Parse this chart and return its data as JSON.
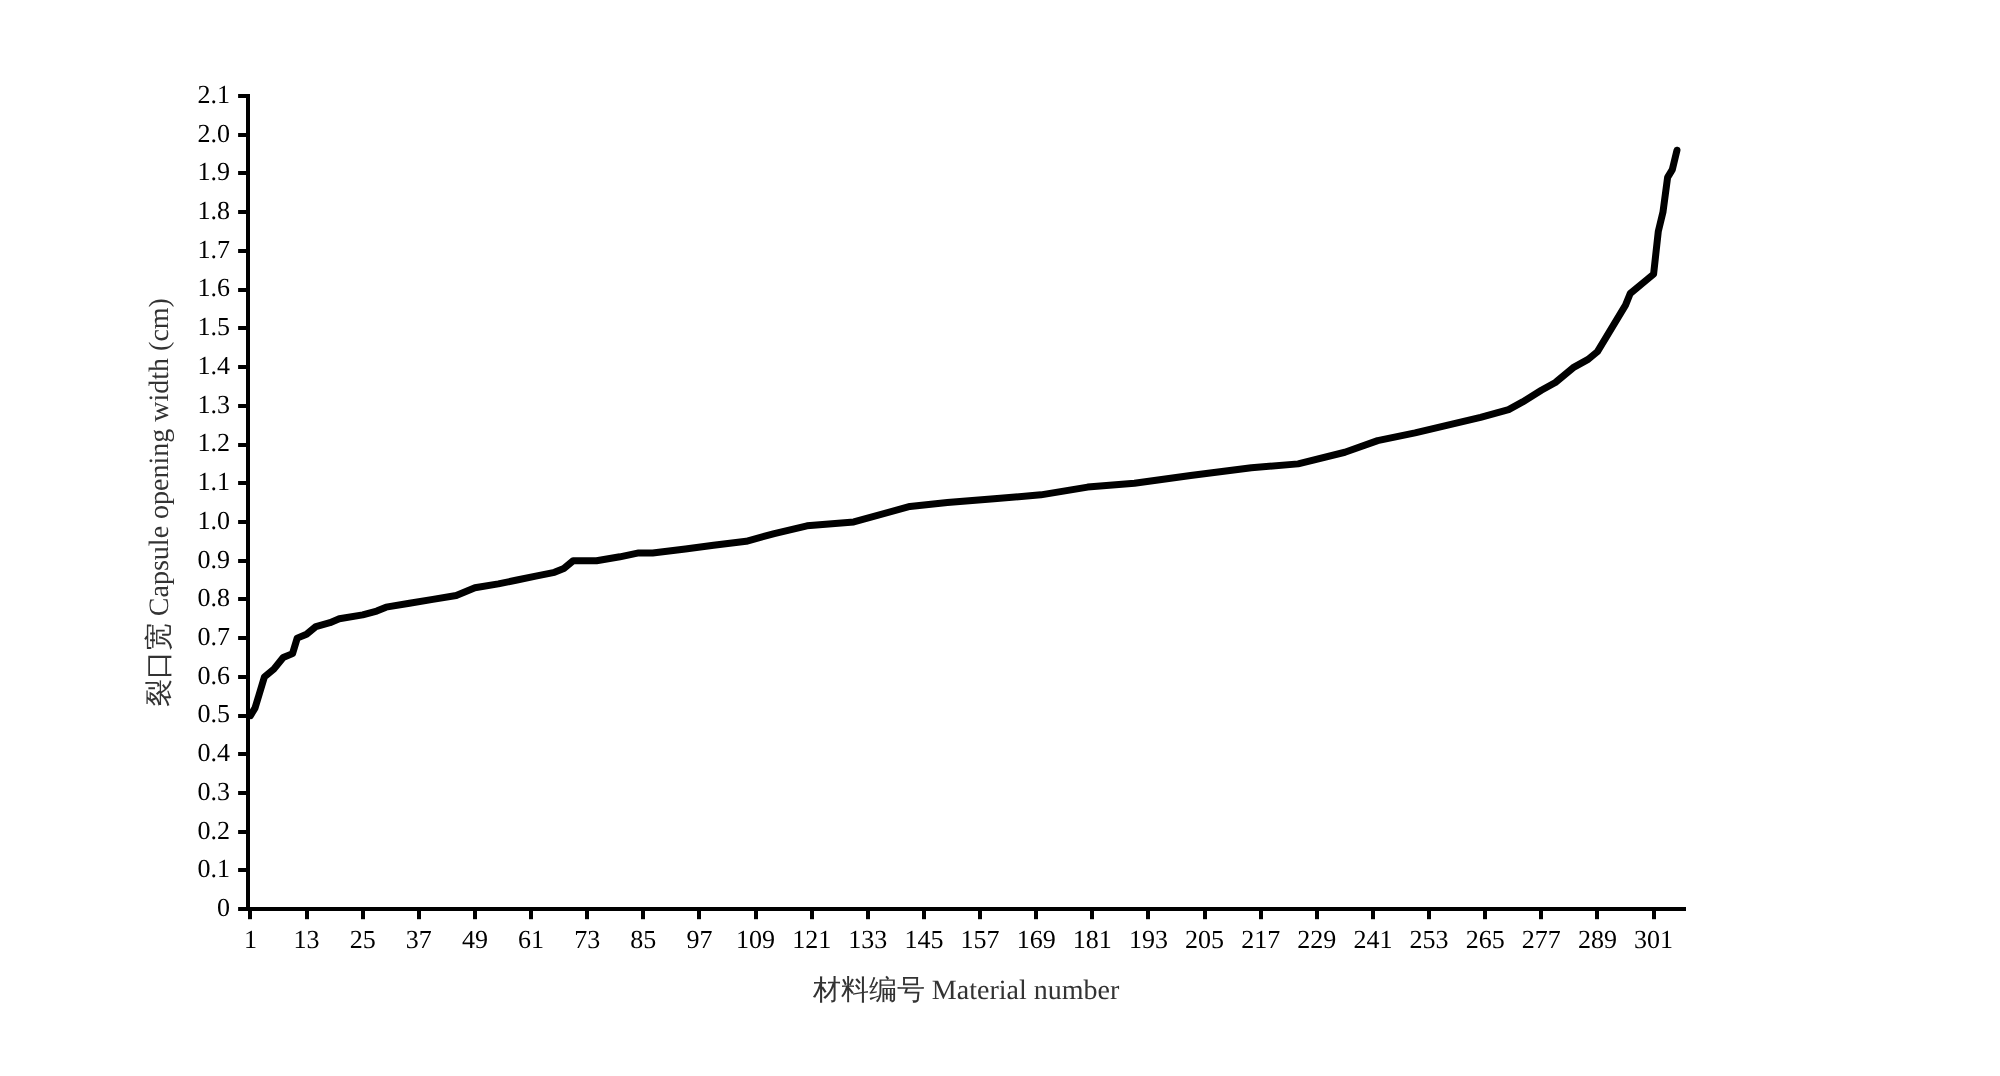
{
  "chart_data": {
    "type": "line",
    "xlabel": "材料编号 Material number",
    "ylabel": "裂口宽 Capsule opening width (cm)",
    "xlim": [
      0.5,
      307.5
    ],
    "xticks": [
      1,
      13,
      25,
      37,
      49,
      61,
      73,
      85,
      97,
      109,
      121,
      133,
      145,
      157,
      169,
      181,
      193,
      205,
      217,
      229,
      241,
      253,
      265,
      277,
      289,
      301
    ],
    "ylim": [
      0,
      2.1
    ],
    "yticks": [
      0,
      0.1,
      0.2,
      0.3,
      0.4,
      0.5,
      0.6,
      0.7,
      0.8,
      0.9,
      {
        "value": 1,
        "label": "1.0"
      },
      1.1,
      1.2,
      1.3,
      1.4,
      1.5,
      1.6,
      1.7,
      1.8,
      1.9,
      {
        "value": 2,
        "label": "2.0"
      },
      2.1
    ],
    "grid": false,
    "legend": false,
    "marker": "none",
    "line_style": "solid",
    "series": [
      {
        "color": "#000000",
        "x": [
          1,
          2,
          4,
          6,
          8,
          10,
          11,
          13,
          15,
          18,
          20,
          25,
          28,
          30,
          35,
          40,
          45,
          49,
          54,
          58,
          62,
          66,
          68,
          70,
          75,
          80,
          84,
          87,
          94,
          100,
          107,
          113,
          120,
          130,
          142,
          150,
          160,
          170,
          180,
          190,
          202,
          215,
          225,
          235,
          242,
          250,
          257,
          264,
          270,
          273,
          277,
          280,
          284,
          287,
          289,
          291,
          293,
          295,
          296,
          299,
          301,
          302,
          303,
          304,
          305,
          306
        ],
        "values": [
          0.5,
          0.52,
          0.6,
          0.62,
          0.65,
          0.66,
          0.7,
          0.71,
          0.73,
          0.74,
          0.75,
          0.76,
          0.77,
          0.78,
          0.79,
          0.8,
          0.81,
          0.83,
          0.84,
          0.85,
          0.86,
          0.87,
          0.88,
          0.9,
          0.9,
          0.91,
          0.92,
          0.92,
          0.93,
          0.94,
          0.95,
          0.97,
          0.99,
          1.0,
          1.04,
          1.05,
          1.06,
          1.07,
          1.09,
          1.1,
          1.12,
          1.14,
          1.15,
          1.18,
          1.21,
          1.23,
          1.25,
          1.27,
          1.29,
          1.31,
          1.34,
          1.36,
          1.4,
          1.42,
          1.44,
          1.48,
          1.52,
          1.56,
          1.59,
          1.62,
          1.64,
          1.75,
          1.8,
          1.89,
          1.91,
          1.96
        ]
      }
    ]
  }
}
